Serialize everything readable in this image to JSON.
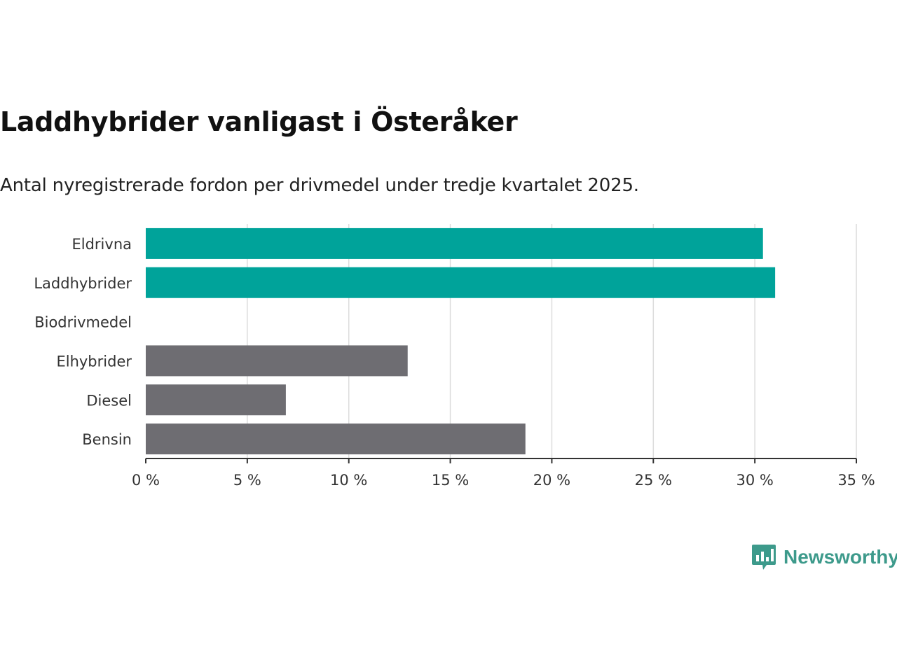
{
  "chart_data": {
    "type": "bar",
    "orientation": "horizontal",
    "title": "Laddhybrider vanligast i Österåker",
    "subtitle": "Antal nyregistrerade fordon per drivmedel under tredje kvartalet 2025.",
    "categories": [
      "Eldrivna",
      "Laddhybrider",
      "Biodrivmedel",
      "Elhybrider",
      "Diesel",
      "Bensin"
    ],
    "values": [
      30.4,
      31.0,
      0,
      12.9,
      6.9,
      18.7
    ],
    "bar_colors": [
      "#00a39a",
      "#00a39a",
      "#00a39a",
      "#6e6d72",
      "#6e6d72",
      "#6e6d72"
    ],
    "xlim": [
      0,
      35
    ],
    "xticks": [
      0,
      5,
      10,
      15,
      20,
      25,
      30,
      35
    ],
    "xtick_labels": [
      "0 %",
      "5 %",
      "10 %",
      "15 %",
      "20 %",
      "25 %",
      "30 %",
      "35 %"
    ],
    "grid": true,
    "xlabel": "",
    "ylabel": ""
  },
  "brand": {
    "name": "Newsworthy",
    "color": "#3d9a8b"
  }
}
